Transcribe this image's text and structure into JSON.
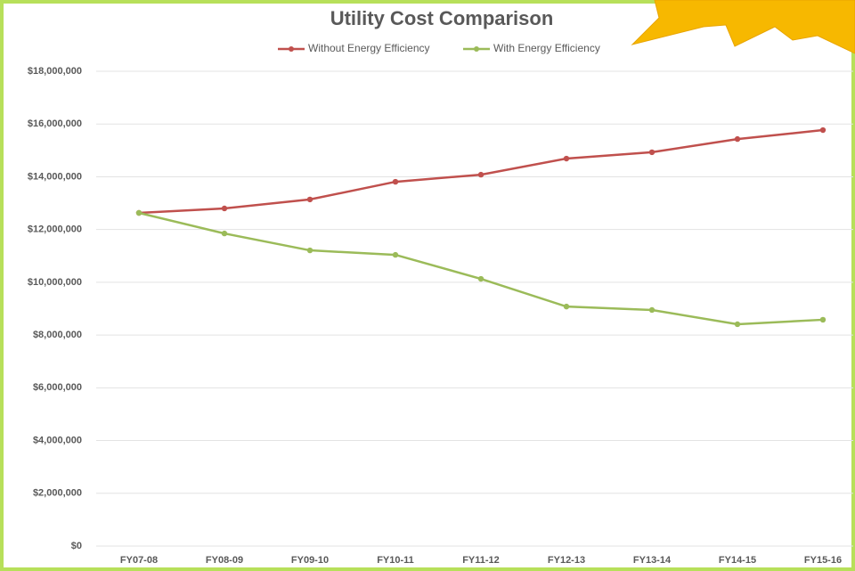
{
  "chart_data": {
    "type": "line",
    "title": "Utility Cost Comparison",
    "categories": [
      "FY07-08",
      "FY08-09",
      "FY09-10",
      "FY10-11",
      "FY11-12",
      "FY12-13",
      "FY13-14",
      "FY14-15",
      "FY15-16"
    ],
    "series": [
      {
        "name": "Without Energy Efficiency",
        "color": "#c0504d",
        "values": [
          12630000,
          12800000,
          13140000,
          13810000,
          14080000,
          14690000,
          14930000,
          15430000,
          15770000
        ]
      },
      {
        "name": "With Energy Efficiency",
        "color": "#9bbb59",
        "values": [
          12630000,
          11850000,
          11210000,
          11040000,
          10130000,
          9080000,
          8950000,
          8410000,
          8580000
        ]
      }
    ],
    "ylim": [
      0,
      18000000
    ],
    "yticks": [
      {
        "value": 0,
        "label": "$0"
      },
      {
        "value": 2000000,
        "label": "$2,000,000"
      },
      {
        "value": 4000000,
        "label": "$4,000,000"
      },
      {
        "value": 6000000,
        "label": "$6,000,000"
      },
      {
        "value": 8000000,
        "label": "$8,000,000"
      },
      {
        "value": 10000000,
        "label": "$10,000,000"
      },
      {
        "value": 12000000,
        "label": "$12,000,000"
      },
      {
        "value": 14000000,
        "label": "$14,000,000"
      },
      {
        "value": 16000000,
        "label": "$16,000,000"
      },
      {
        "value": 18000000,
        "label": "$18,000,000"
      }
    ],
    "grid": true,
    "legend": "top"
  }
}
